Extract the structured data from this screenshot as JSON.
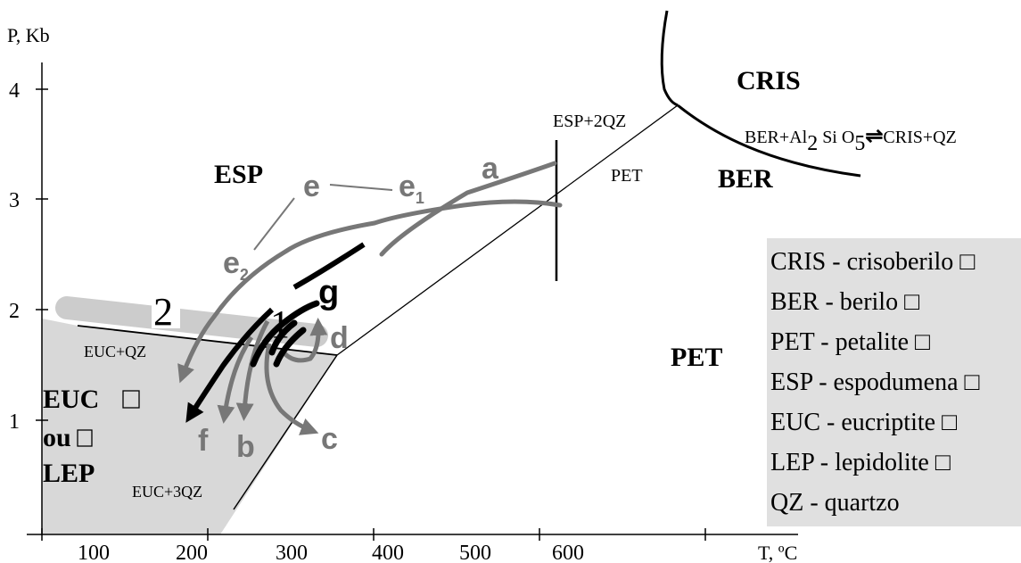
{
  "axes": {
    "ylabel": "P, Kb",
    "xlabel": "T, ºC",
    "x_ticks": [
      "100",
      "200",
      "300",
      "400",
      "500",
      "600"
    ],
    "y_ticks": [
      "1",
      "2",
      "3",
      "4"
    ]
  },
  "fields": {
    "cris": "CRIS",
    "ber": "BER",
    "esp": "ESP",
    "pet_right": "PET",
    "pet_upper": "PET",
    "euc": "EUC",
    "ou": "ou",
    "lep": "LEP"
  },
  "reactions": {
    "esp_2qz": "ESP+2QZ",
    "euc_qz": "EUC+QZ",
    "euc_3qz": "EUC+3QZ",
    "ber_reaction_left": "BER+Al",
    "ber_reaction_sub2": "2",
    "ber_reaction_si": " Si O",
    "ber_reaction_sub5": "5",
    "ber_reaction_arrow": "⇌",
    "ber_reaction_right": "CRIS+QZ"
  },
  "paths": {
    "a": "a",
    "b": "b",
    "c": "c",
    "d": "d",
    "e": "e",
    "e1": "e",
    "e1_sub": "1",
    "e2": "e",
    "e2_sub": "2",
    "f": "f",
    "g": "g",
    "one": "1",
    "two": "2"
  },
  "legend": [
    "CRIS - crisoberilo",
    "BER - berilo",
    "PET - petalite",
    "ESP - espodumena",
    "EUC - eucriptite",
    "LEP - lepidolite",
    "QZ - quartzo"
  ],
  "colors": {
    "path_gray": "#777777",
    "field_gray": "#d8d8d8",
    "legend_bg": "#e0e0e0",
    "line": "#000000"
  }
}
